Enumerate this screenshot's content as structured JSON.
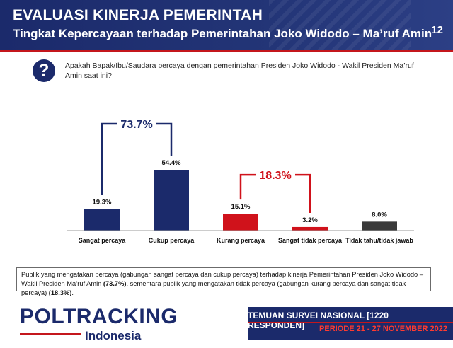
{
  "header": {
    "title": "EVALUASI KINERJA PEMERINTAH",
    "subtitle": "Tingkat Kepercayaan terhadap Pemerintahan Joko Widodo – Ma’ruf Amin",
    "page_number": "12"
  },
  "question": {
    "icon_text": "?",
    "text": "Apakah Bapak/Ibu/Saudara percaya dengan pemerintahan Presiden Joko Widodo - Wakil Presiden Ma’ruf Amin saat ini?"
  },
  "chart_data": {
    "type": "bar",
    "categories": [
      "Sangat percaya",
      "Cukup percaya",
      "Kurang percaya",
      "Sangat tidak percaya",
      "Tidak tahu/tidak jawab"
    ],
    "values": [
      19.3,
      54.4,
      15.1,
      3.2,
      8.0
    ],
    "value_labels": [
      "19.3%",
      "54.4%",
      "15.1%",
      "3.2%",
      "8.0%"
    ],
    "colors": [
      "#1b2a6b",
      "#1b2a6b",
      "#d0121b",
      "#d0121b",
      "#3a3a3a"
    ],
    "ylim": [
      0,
      60
    ],
    "brackets": [
      {
        "label": "73.7%",
        "from": 0,
        "to": 1,
        "color": "#1b2a6b"
      },
      {
        "label": "18.3%",
        "from": 2,
        "to": 3,
        "color": "#d0121b"
      }
    ],
    "title": "",
    "xlabel": "",
    "ylabel": ""
  },
  "note": {
    "text_a": "Publik yang mengatakan percaya (gabungan sangat percaya dan cukup percaya) terhadap kinerja Pemerintahan Presiden Joko Widodo – Wakil Presiden Ma’ruf Amin ",
    "bold_a": "(73.7%)",
    "text_b": ", sementara publik yang mengatakan tidak percaya (gabungan kurang percaya dan sangat tidak percaya) ",
    "bold_b": "(18.3%)",
    "text_c": "."
  },
  "footer": {
    "logo_main": "POLTRACKING",
    "logo_sub": "Indonesia",
    "survey": "TEMUAN SURVEI NASIONAL [1220 RESPONDEN]",
    "period": "PERIODE 21 - 27 NOVEMBER 2022"
  }
}
